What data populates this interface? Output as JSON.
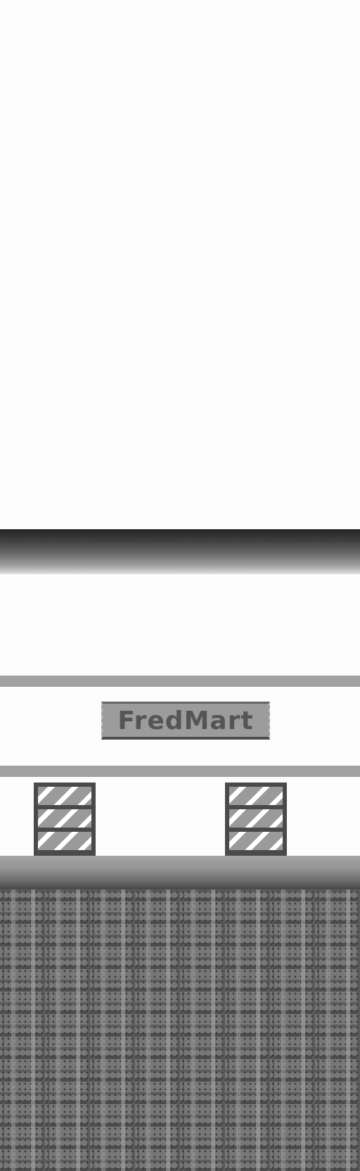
{
  "store": {
    "sign_text": "FredMart"
  },
  "colors": {
    "sky": "#fdfdfd",
    "awning_dark": "#1e1e1e",
    "trim": "#a2a2a2",
    "sign_bg": "#9c9c9c",
    "sign_text": "#555555",
    "window_frame": "#4a4a4a",
    "floor": "#777777"
  }
}
